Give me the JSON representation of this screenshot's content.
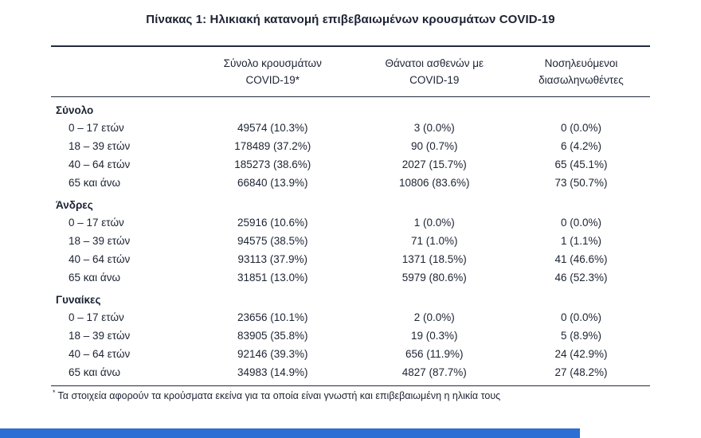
{
  "page": {
    "title": "Πίνακας 1: Ηλικιακή κατανομή επιβεβαιωμένων κρουσμάτων COVID-19",
    "accent_color": "#2b6fd4"
  },
  "footnote": {
    "marker": "*",
    "text": "Τα στοιχεία αφορούν τα κρούσματα εκείνα για τα οποία είναι γνωστή και επιβεβαιωμένη η ηλικία τους"
  },
  "table": {
    "columns": [
      {
        "line1": "Σύνολο κρουσμάτων",
        "line2": "COVID-19*"
      },
      {
        "line1": "Θάνατοι ασθενών με",
        "line2": "COVID-19"
      },
      {
        "line1": "Νοσηλευόμενοι",
        "line2": "διασωληνωθέντες"
      }
    ],
    "sections": [
      {
        "header": "Σύνολο",
        "rows": [
          {
            "label": "0 – 17 ετών",
            "cases": "49574 (10.3%)",
            "deaths": "3 (0.0%)",
            "intubated": "0 (0.0%)"
          },
          {
            "label": "18 – 39 ετών",
            "cases": "178489 (37.2%)",
            "deaths": "90 (0.7%)",
            "intubated": "6 (4.2%)"
          },
          {
            "label": "40 – 64 ετών",
            "cases": "185273 (38.6%)",
            "deaths": "2027 (15.7%)",
            "intubated": "65 (45.1%)"
          },
          {
            "label": "65 και άνω",
            "cases": "66840 (13.9%)",
            "deaths": "10806 (83.6%)",
            "intubated": "73 (50.7%)"
          }
        ]
      },
      {
        "header": "Άνδρες",
        "rows": [
          {
            "label": "0 – 17 ετών",
            "cases": "25916 (10.6%)",
            "deaths": "1 (0.0%)",
            "intubated": "0 (0.0%)"
          },
          {
            "label": "18 – 39 ετών",
            "cases": "94575 (38.5%)",
            "deaths": "71 (1.0%)",
            "intubated": "1 (1.1%)"
          },
          {
            "label": "40 – 64 ετών",
            "cases": "93113 (37.9%)",
            "deaths": "1371 (18.5%)",
            "intubated": "41 (46.6%)"
          },
          {
            "label": "65 και άνω",
            "cases": "31851 (13.0%)",
            "deaths": "5979 (80.6%)",
            "intubated": "46 (52.3%)"
          }
        ]
      },
      {
        "header": "Γυναίκες",
        "rows": [
          {
            "label": "0 – 17 ετών",
            "cases": "23656 (10.1%)",
            "deaths": "2 (0.0%)",
            "intubated": "0 (0.0%)"
          },
          {
            "label": "18 – 39 ετών",
            "cases": "83905 (35.8%)",
            "deaths": "19 (0.3%)",
            "intubated": "5 (8.9%)"
          },
          {
            "label": "40 – 64 ετών",
            "cases": "92146 (39.3%)",
            "deaths": "656 (11.9%)",
            "intubated": "24 (42.9%)"
          },
          {
            "label": "65 και άνω",
            "cases": "34983 (14.9%)",
            "deaths": "4827 (87.7%)",
            "intubated": "27 (48.2%)"
          }
        ]
      }
    ]
  }
}
